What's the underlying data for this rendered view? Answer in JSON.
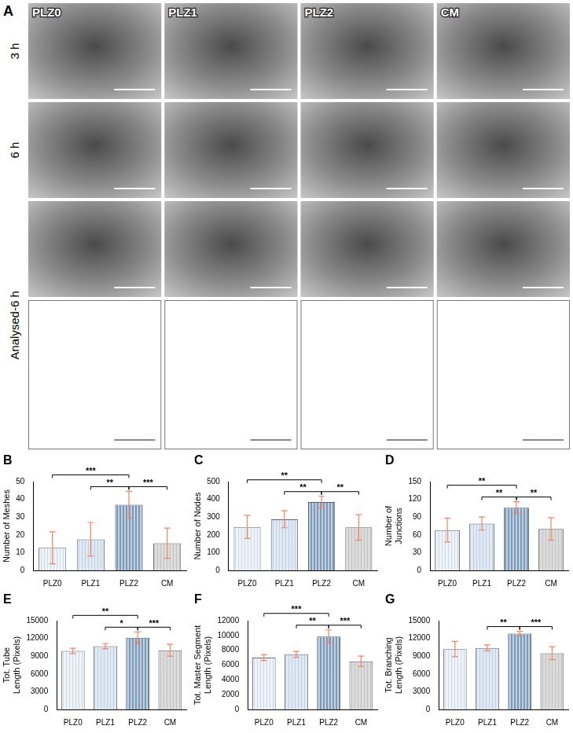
{
  "panel_a": {
    "letter": "A",
    "columns": [
      "PLZ0",
      "PLZ1",
      "PLZ2",
      "CM"
    ],
    "rows": [
      "3 h",
      "6 h",
      "Analysed-6 h"
    ]
  },
  "chart_data": [
    {
      "type": "bar",
      "panel_label": "B",
      "y_label": "Number of Meshes",
      "categories": [
        "PLZ0",
        "PLZ1",
        "PLZ2",
        "CM"
      ],
      "values": [
        12.7,
        17.5,
        37,
        15.3
      ],
      "errors": [
        9,
        9.5,
        7.5,
        8.5
      ],
      "colors": [
        "#eef4fb",
        "#dfeaf7",
        "#b8d2ee",
        "#dcdcdc"
      ],
      "ylim": [
        0,
        50
      ],
      "yticks": [
        0,
        10,
        20,
        30,
        40,
        50
      ],
      "grid": false,
      "annotations": [
        {
          "from": "PLZ0",
          "to": "PLZ2",
          "text": "***"
        },
        {
          "from": "PLZ1",
          "to": "PLZ2",
          "text": "**"
        },
        {
          "from": "PLZ2",
          "to": "CM",
          "text": "***"
        }
      ]
    },
    {
      "type": "bar",
      "panel_label": "C",
      "y_label": "Number of Nodes",
      "categories": [
        "PLZ0",
        "PLZ1",
        "PLZ2",
        "CM"
      ],
      "values": [
        245,
        288,
        385,
        242
      ],
      "errors": [
        65,
        48,
        32,
        72
      ],
      "colors": [
        "#eef4fb",
        "#dfeaf7",
        "#b8d2ee",
        "#dcdcdc"
      ],
      "ylim": [
        0,
        500
      ],
      "yticks": [
        0,
        100,
        200,
        300,
        400,
        500
      ],
      "grid": false,
      "annotations": [
        {
          "from": "PLZ0",
          "to": "PLZ2",
          "text": "**"
        },
        {
          "from": "PLZ1",
          "to": "PLZ2",
          "text": "**"
        },
        {
          "from": "PLZ2",
          "to": "CM",
          "text": "**"
        }
      ]
    },
    {
      "type": "bar",
      "panel_label": "D",
      "y_label": "Number of Junctions",
      "categories": [
        "PLZ0",
        "PLZ1",
        "PLZ2",
        "CM"
      ],
      "values": [
        68,
        79,
        106,
        70
      ],
      "errors": [
        20,
        11,
        10,
        19
      ],
      "colors": [
        "#eef4fb",
        "#dfeaf7",
        "#b8d2ee",
        "#dcdcdc"
      ],
      "ylim": [
        0,
        150
      ],
      "yticks": [
        0,
        30,
        60,
        90,
        120,
        150
      ],
      "grid": false,
      "annotations": [
        {
          "from": "PLZ0",
          "to": "PLZ2",
          "text": "**"
        },
        {
          "from": "PLZ1",
          "to": "PLZ2",
          "text": "**"
        },
        {
          "from": "PLZ2",
          "to": "CM",
          "text": "**"
        }
      ]
    },
    {
      "type": "bar",
      "panel_label": "E",
      "y_label": "Tot. Tube Length (Pixels)",
      "categories": [
        "PLZ0",
        "PLZ1",
        "PLZ2",
        "CM"
      ],
      "values": [
        9900,
        10700,
        12100,
        10000
      ],
      "errors": [
        450,
        450,
        1000,
        1000
      ],
      "colors": [
        "#eef4fb",
        "#dfeaf7",
        "#b8d2ee",
        "#dcdcdc"
      ],
      "ylim": [
        0,
        15000
      ],
      "yticks": [
        0,
        3000,
        6000,
        9000,
        12000,
        15000
      ],
      "grid": false,
      "annotations": [
        {
          "from": "PLZ0",
          "to": "PLZ2",
          "text": "**"
        },
        {
          "from": "PLZ1",
          "to": "PLZ2",
          "text": "*"
        },
        {
          "from": "PLZ2",
          "to": "CM",
          "text": "***"
        }
      ]
    },
    {
      "type": "bar",
      "panel_label": "F",
      "y_label": "Tot. Master Segment Length (Pixels)",
      "categories": [
        "PLZ0",
        "PLZ1",
        "PLZ2",
        "CM"
      ],
      "values": [
        7000,
        7450,
        9850,
        6500
      ],
      "errors": [
        400,
        400,
        900,
        700
      ],
      "colors": [
        "#eef4fb",
        "#dfeaf7",
        "#b8d2ee",
        "#dcdcdc"
      ],
      "ylim": [
        0,
        12000
      ],
      "yticks": [
        0,
        2000,
        4000,
        6000,
        8000,
        10000,
        12000
      ],
      "grid": false,
      "annotations": [
        {
          "from": "PLZ0",
          "to": "PLZ2",
          "text": "***"
        },
        {
          "from": "PLZ1",
          "to": "PLZ2",
          "text": "**"
        },
        {
          "from": "PLZ2",
          "to": "CM",
          "text": "***"
        }
      ]
    },
    {
      "type": "bar",
      "panel_label": "G",
      "y_label": "Tot. Branching Length (Pixels)",
      "categories": [
        "PLZ0",
        "PLZ1",
        "PLZ2",
        "CM"
      ],
      "values": [
        10200,
        10400,
        12800,
        9500
      ],
      "errors": [
        1300,
        500,
        400,
        1100
      ],
      "colors": [
        "#eef4fb",
        "#dfeaf7",
        "#b8d2ee",
        "#dcdcdc"
      ],
      "ylim": [
        0,
        15000
      ],
      "yticks": [
        0,
        3000,
        6000,
        9000,
        12000,
        15000
      ],
      "grid": false,
      "annotations": [
        {
          "from": "PLZ1",
          "to": "PLZ2",
          "text": "**"
        },
        {
          "from": "PLZ2",
          "to": "CM",
          "text": "***"
        }
      ]
    }
  ]
}
